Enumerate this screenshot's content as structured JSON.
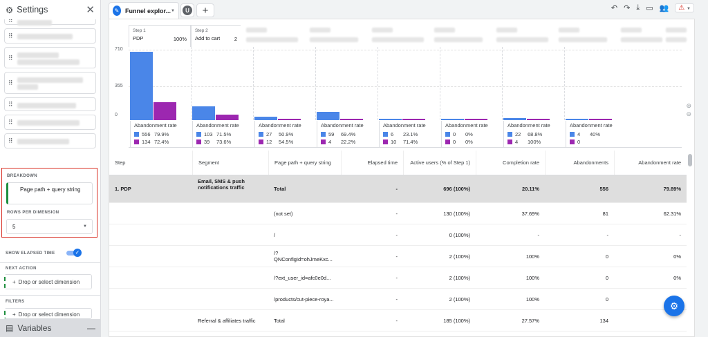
{
  "sidebar": {
    "title": "Settings",
    "breakdown": {
      "label": "BREAKDOWN",
      "value": "Page path + query string"
    },
    "rows_per_dimension": {
      "label": "ROWS PER DIMENSION",
      "value": "5"
    },
    "show_elapsed_time": {
      "label": "SHOW ELAPSED TIME",
      "enabled": true
    },
    "next_action": {
      "label": "NEXT ACTION",
      "button": "Drop or select dimension"
    },
    "filters": {
      "label": "FILTERS",
      "button": "Drop or select dimension"
    },
    "variables": "Variables"
  },
  "tabs": {
    "active": "Funnel explor...",
    "user_initial": "U",
    "add": "+"
  },
  "steps": [
    {
      "num": "Step 1",
      "name": "PDP",
      "pct": "100%"
    },
    {
      "num": "Step 2",
      "name": "Add to cart",
      "pct": "2"
    }
  ],
  "chart_data": {
    "type": "bar",
    "ticks": [
      "710",
      "355",
      "0"
    ],
    "ylim": [
      0,
      710
    ],
    "colors": {
      "active": "#4a86e8",
      "abandoned": "#9c27b0"
    },
    "series": [
      {
        "values": [
          696,
          141,
          37,
          81,
          17,
          9,
          22,
          8
        ]
      },
      {
        "values": [
          185,
          53,
          17,
          17,
          14,
          3,
          10,
          2
        ]
      }
    ]
  },
  "abandonment": {
    "label": "Abandonment rate",
    "groups": [
      [
        [
          "556",
          "79.9%"
        ],
        [
          "134",
          "72.4%"
        ]
      ],
      [
        [
          "103",
          "71.5%"
        ],
        [
          "39",
          "73.6%"
        ]
      ],
      [
        [
          "27",
          "50.9%"
        ],
        [
          "12",
          "54.5%"
        ]
      ],
      [
        [
          "59",
          "69.4%"
        ],
        [
          "4",
          "22.2%"
        ]
      ],
      [
        [
          "6",
          "23.1%"
        ],
        [
          "10",
          "71.4%"
        ]
      ],
      [
        [
          "0",
          "0%"
        ],
        [
          "0",
          "0%"
        ]
      ],
      [
        [
          "22",
          "68.8%"
        ],
        [
          "4",
          "100%"
        ]
      ],
      [
        [
          "4",
          "40%"
        ],
        [
          "0",
          ""
        ]
      ]
    ]
  },
  "table": {
    "headers": [
      "Step",
      "Segment",
      "Page path + query string",
      "Elapsed time",
      "Active users (% of Step 1)",
      "Completion rate",
      "Abandonments",
      "Abandonment rate"
    ],
    "rows": [
      [
        "1. PDP",
        "Email, SMS & push notifications traffic",
        "Total",
        "-",
        "696 (100%)",
        "20.11%",
        "556",
        "79.89%"
      ],
      [
        "",
        "",
        "(not set)",
        "-",
        "130 (100%)",
        "37.69%",
        "81",
        "62.31%"
      ],
      [
        "",
        "",
        "/",
        "-",
        "0 (100%)",
        "-",
        "-",
        "-"
      ],
      [
        "",
        "",
        "/?QNConfigId=ohJmeKxc...",
        "-",
        "2 (100%)",
        "100%",
        "0",
        "0%"
      ],
      [
        "",
        "",
        "/?ext_user_id=afc0e0d...",
        "-",
        "2 (100%)",
        "100%",
        "0",
        "0%"
      ],
      [
        "",
        "",
        "/products/cut-piece-roya...",
        "-",
        "2 (100%)",
        "100%",
        "0",
        "0%"
      ],
      [
        "",
        "Referral & affiliates traffic",
        "Total",
        "-",
        "185 (100%)",
        "27.57%",
        "134",
        ""
      ]
    ]
  }
}
